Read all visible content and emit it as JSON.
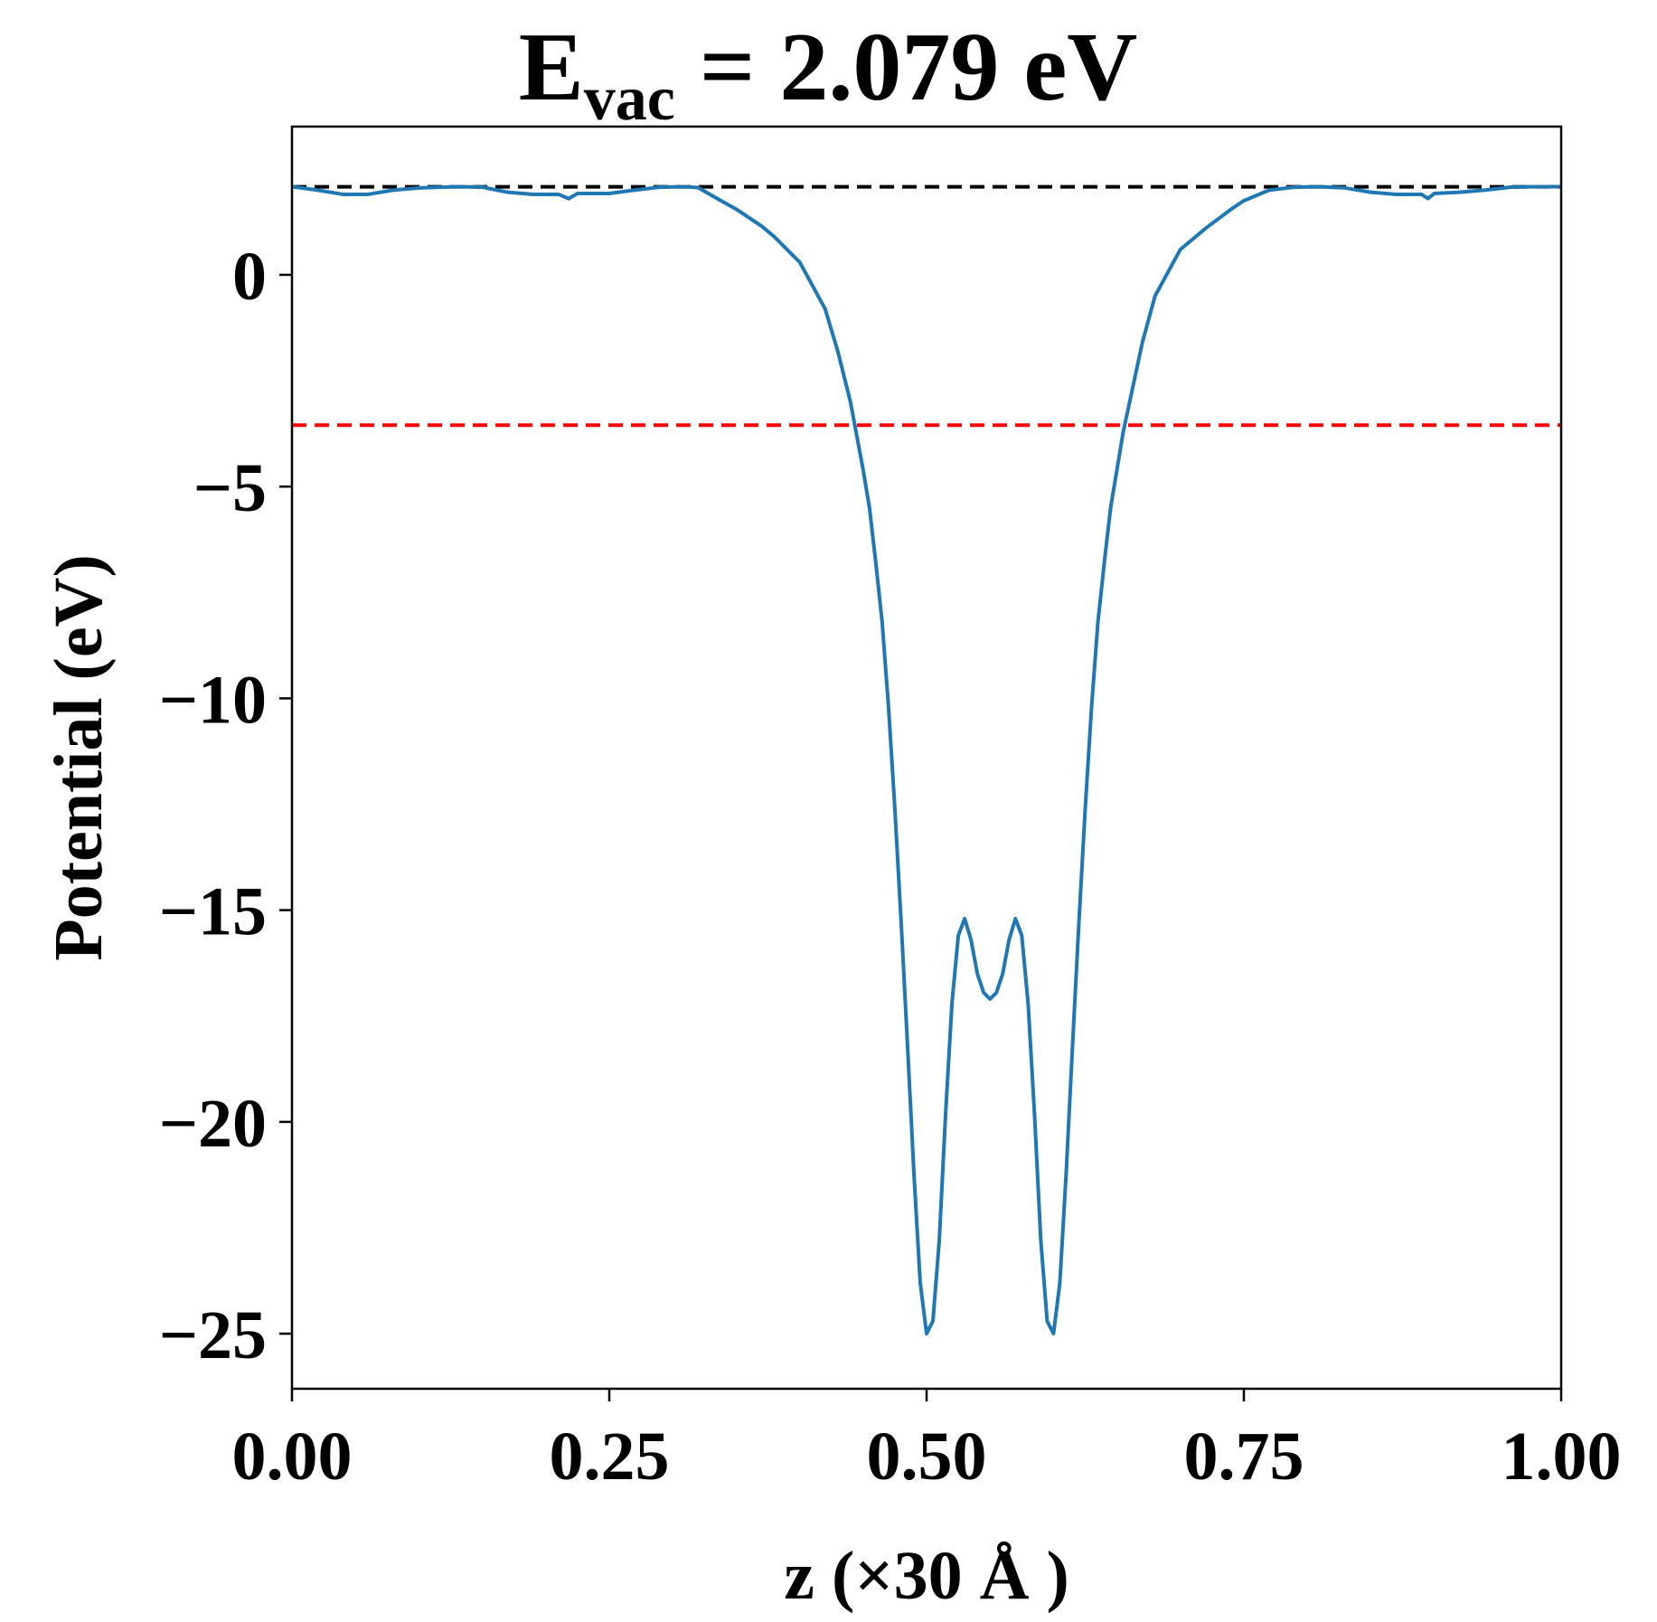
{
  "chart_data": {
    "type": "line",
    "title": {
      "prefix": "E",
      "subscript": "vac",
      "suffix": " = 2.079 eV"
    },
    "xlabel": "z (×30 Å )",
    "ylabel": "Potential (eV)",
    "xlim": [
      0,
      1
    ],
    "ylim": [
      -26.3,
      3.5
    ],
    "xticks": [
      0.0,
      0.25,
      0.5,
      0.75,
      1.0
    ],
    "xtick_labels": [
      "0.00",
      "0.25",
      "0.50",
      "0.75",
      "1.00"
    ],
    "yticks": [
      0,
      -5,
      -10,
      -15,
      -20,
      -25
    ],
    "ytick_labels": [
      "0",
      "−5",
      "−10",
      "−15",
      "−20",
      "−25"
    ],
    "grid": false,
    "reference_lines": [
      {
        "y": 2.079,
        "color": "#000000",
        "style": "dashed"
      },
      {
        "y": -3.55,
        "color": "#ff0000",
        "style": "dashed"
      }
    ],
    "series": [
      {
        "color": "#1f77b4",
        "x": [
          0.0,
          0.02,
          0.04,
          0.06,
          0.08,
          0.1,
          0.13,
          0.15,
          0.17,
          0.19,
          0.21,
          0.218,
          0.225,
          0.25,
          0.27,
          0.29,
          0.31,
          0.32,
          0.335,
          0.35,
          0.37,
          0.38,
          0.4,
          0.42,
          0.43,
          0.44,
          0.45,
          0.455,
          0.46,
          0.465,
          0.47,
          0.475,
          0.48,
          0.485,
          0.49,
          0.495,
          0.5,
          0.505,
          0.51,
          0.515,
          0.52,
          0.525,
          0.53,
          0.535,
          0.54,
          0.545,
          0.55,
          0.555,
          0.56,
          0.565,
          0.57,
          0.575,
          0.58,
          0.585,
          0.59,
          0.595,
          0.6,
          0.605,
          0.61,
          0.615,
          0.62,
          0.625,
          0.63,
          0.635,
          0.64,
          0.645,
          0.65,
          0.655,
          0.66,
          0.67,
          0.68,
          0.7,
          0.72,
          0.74,
          0.75,
          0.77,
          0.79,
          0.81,
          0.83,
          0.85,
          0.87,
          0.89,
          0.895,
          0.9,
          0.92,
          0.94,
          0.96,
          0.98,
          1.0
        ],
        "y": [
          2.08,
          2.0,
          1.9,
          1.9,
          2.0,
          2.05,
          2.08,
          2.07,
          1.95,
          1.9,
          1.9,
          1.8,
          1.92,
          1.92,
          2.0,
          2.07,
          2.08,
          2.06,
          1.8,
          1.55,
          1.15,
          0.9,
          0.3,
          -0.8,
          -1.8,
          -3.0,
          -4.6,
          -5.5,
          -6.8,
          -8.2,
          -10.2,
          -12.6,
          -15.3,
          -18.2,
          -21.2,
          -23.8,
          -25.0,
          -24.7,
          -22.8,
          -19.8,
          -17.2,
          -15.6,
          -15.2,
          -15.7,
          -16.5,
          -16.95,
          -17.1,
          -16.95,
          -16.5,
          -15.7,
          -15.2,
          -15.6,
          -17.2,
          -19.8,
          -22.8,
          -24.7,
          -25.0,
          -23.8,
          -21.2,
          -18.2,
          -15.3,
          -12.6,
          -10.2,
          -8.2,
          -6.8,
          -5.5,
          -4.6,
          -3.7,
          -3.0,
          -1.6,
          -0.5,
          0.6,
          1.1,
          1.55,
          1.75,
          2.0,
          2.07,
          2.08,
          2.05,
          1.95,
          1.9,
          1.9,
          1.8,
          1.92,
          1.95,
          2.0,
          2.07,
          2.08,
          2.08
        ]
      }
    ]
  }
}
